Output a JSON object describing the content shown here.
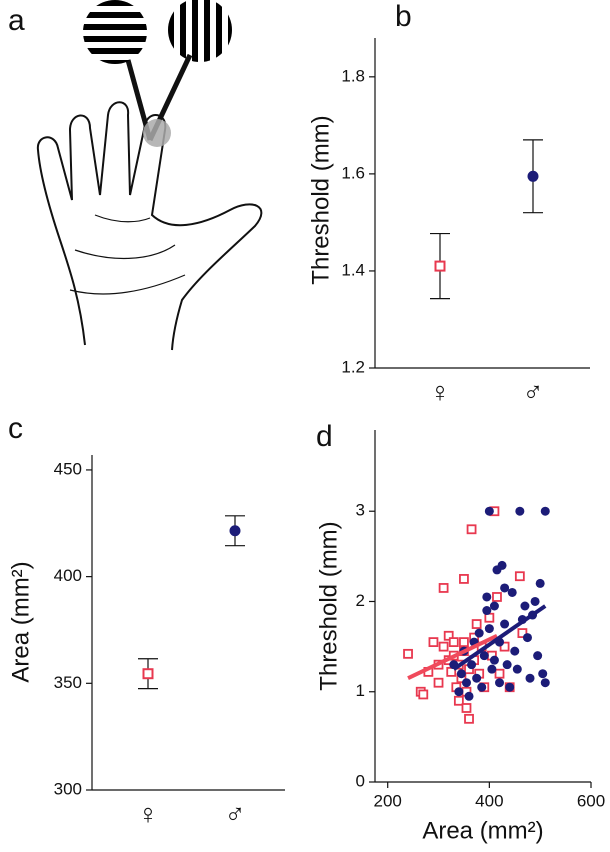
{
  "illustration": {
    "label": "a"
  },
  "chart_data": [
    {
      "type": "errorbar",
      "label": "b",
      "ylabel": "Threshold (mm)",
      "categories": [
        "♀",
        "♂"
      ],
      "values": [
        1.41,
        1.595
      ],
      "errors": [
        0.067,
        0.075
      ],
      "colors": [
        "#e8384f",
        "#1c1c78"
      ],
      "markers": [
        "square",
        "circle"
      ],
      "ylim": [
        1.2,
        1.88
      ],
      "yticks": [
        1.2,
        1.4,
        1.6,
        1.8
      ]
    },
    {
      "type": "errorbar",
      "label": "c",
      "ylabel": "Area (mm²)",
      "categories": [
        "♀",
        "♂"
      ],
      "values": [
        354.5,
        421.5
      ],
      "errors": [
        7,
        7
      ],
      "colors": [
        "#e8384f",
        "#1c1c78"
      ],
      "markers": [
        "square",
        "circle"
      ],
      "ylim": [
        300,
        457
      ],
      "yticks": [
        300,
        350,
        400,
        450
      ]
    },
    {
      "type": "scatter",
      "label": "d",
      "ylabel": "Threshold (mm)",
      "xlabel": "Area (mm²)",
      "xlim": [
        175,
        600
      ],
      "xticks": [
        200,
        400,
        600
      ],
      "ylim": [
        0,
        3.9
      ],
      "yticks": [
        0,
        1,
        2,
        3
      ],
      "series": [
        {
          "color": "#e8384f",
          "marker": "square",
          "x": [
            240,
            265,
            270,
            280,
            290,
            300,
            300,
            310,
            310,
            320,
            320,
            325,
            330,
            330,
            335,
            340,
            340,
            345,
            350,
            350,
            355,
            360,
            360,
            365,
            370,
            370,
            375,
            380,
            385,
            390,
            400,
            405,
            410,
            415,
            420,
            430,
            440,
            460,
            465,
            355,
            350
          ],
          "values": [
            1.42,
            1.0,
            0.97,
            1.22,
            1.55,
            1.3,
            1.1,
            2.15,
            1.5,
            1.62,
            1.35,
            1.22,
            1.55,
            1.4,
            1.05,
            1.3,
            0.9,
            1.15,
            1.45,
            2.25,
            1.0,
            0.7,
            1.25,
            2.8,
            1.6,
            1.35,
            1.75,
            1.2,
            1.5,
            1.05,
            1.82,
            1.4,
            3.0,
            2.05,
            1.2,
            1.5,
            1.05,
            2.28,
            1.65,
            0.82,
            1.55
          ]
        },
        {
          "color": "#1c1c78",
          "marker": "circle",
          "x": [
            330,
            340,
            345,
            350,
            355,
            360,
            365,
            370,
            375,
            380,
            385,
            390,
            395,
            400,
            400,
            405,
            410,
            415,
            420,
            420,
            425,
            430,
            435,
            440,
            445,
            450,
            455,
            460,
            465,
            470,
            475,
            480,
            485,
            490,
            495,
            500,
            505,
            510,
            510,
            395,
            410,
            430
          ],
          "values": [
            1.3,
            1.0,
            1.2,
            1.45,
            1.1,
            0.95,
            1.3,
            1.55,
            1.15,
            1.65,
            1.05,
            1.4,
            2.05,
            3.0,
            1.7,
            1.25,
            1.95,
            2.35,
            1.1,
            1.55,
            2.4,
            1.75,
            1.3,
            1.05,
            2.1,
            1.45,
            1.25,
            3.0,
            1.8,
            1.95,
            1.6,
            1.15,
            1.85,
            2.0,
            1.4,
            2.2,
            1.2,
            3.0,
            1.1,
            1.9,
            1.35,
            2.15
          ]
        }
      ],
      "fits": [
        {
          "color": "#f04a5c",
          "x": [
            240,
            415
          ],
          "values": [
            1.15,
            1.62
          ]
        },
        {
          "color": "#1c1c78",
          "x": [
            330,
            510
          ],
          "values": [
            1.25,
            1.95
          ]
        }
      ]
    }
  ]
}
